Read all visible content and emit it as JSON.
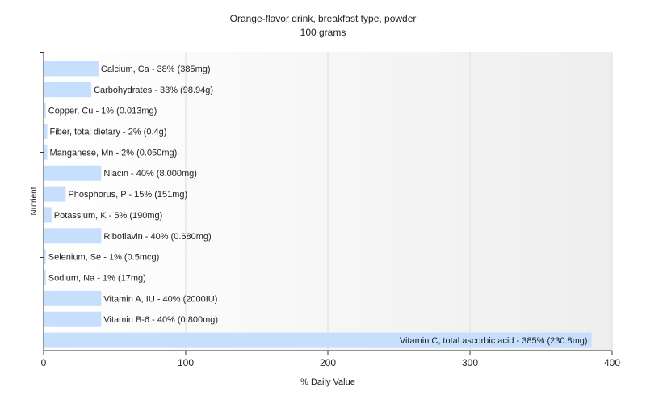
{
  "chart_data": {
    "type": "bar",
    "orientation": "horizontal",
    "title": "Orange-flavor drink, breakfast type, powder",
    "subtitle": "100 grams",
    "xlabel": "% Daily Value",
    "ylabel": "Nutrient",
    "xlim": [
      0,
      400
    ],
    "xticks": [
      0,
      100,
      200,
      300,
      400
    ],
    "grid": true,
    "legend": "none",
    "bar_color": "#c5dffc",
    "categories": [
      "Calcium, Ca",
      "Carbohydrates",
      "Copper, Cu",
      "Fiber, total dietary",
      "Manganese, Mn",
      "Niacin",
      "Phosphorus, P",
      "Potassium, K",
      "Riboflavin",
      "Selenium, Se",
      "Sodium, Na",
      "Vitamin A, IU",
      "Vitamin B-6",
      "Vitamin C, total ascorbic acid"
    ],
    "values": [
      38,
      33,
      1,
      2,
      2,
      40,
      15,
      5,
      40,
      1,
      1,
      40,
      40,
      385
    ],
    "labels": [
      "Calcium, Ca - 38% (385mg)",
      "Carbohydrates - 33% (98.94g)",
      "Copper, Cu - 1% (0.013mg)",
      "Fiber, total dietary - 2% (0.4g)",
      "Manganese, Mn - 2% (0.050mg)",
      "Niacin - 40% (8.000mg)",
      "Phosphorus, P - 15% (151mg)",
      "Potassium, K - 5% (190mg)",
      "Riboflavin - 40% (0.680mg)",
      "Selenium, Se - 1% (0.5mcg)",
      "Sodium, Na - 1% (17mg)",
      "Vitamin A, IU - 40% (2000IU)",
      "Vitamin B-6 - 40% (0.800mg)",
      "Vitamin C, total ascorbic acid - 385% (230.8mg)"
    ]
  }
}
